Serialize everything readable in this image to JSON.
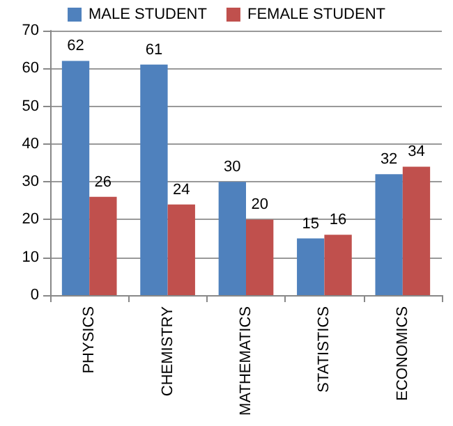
{
  "chart_data": {
    "type": "bar",
    "categories": [
      "PHYSICS",
      "CHEMISTRY",
      "MATHEMATICS",
      "STATISTICS",
      "ECONOMICS"
    ],
    "series": [
      {
        "name": "MALE STUDENT",
        "color": "#4f81bd",
        "values": [
          62,
          61,
          30,
          15,
          32
        ]
      },
      {
        "name": "FEMALE STUDENT",
        "color": "#c0504d",
        "values": [
          26,
          24,
          20,
          16,
          34
        ]
      }
    ],
    "ylim": [
      0,
      70
    ],
    "yticks": [
      0,
      10,
      20,
      30,
      40,
      50,
      60,
      70
    ],
    "grid": "y",
    "legend": "top",
    "data_labels": true
  }
}
